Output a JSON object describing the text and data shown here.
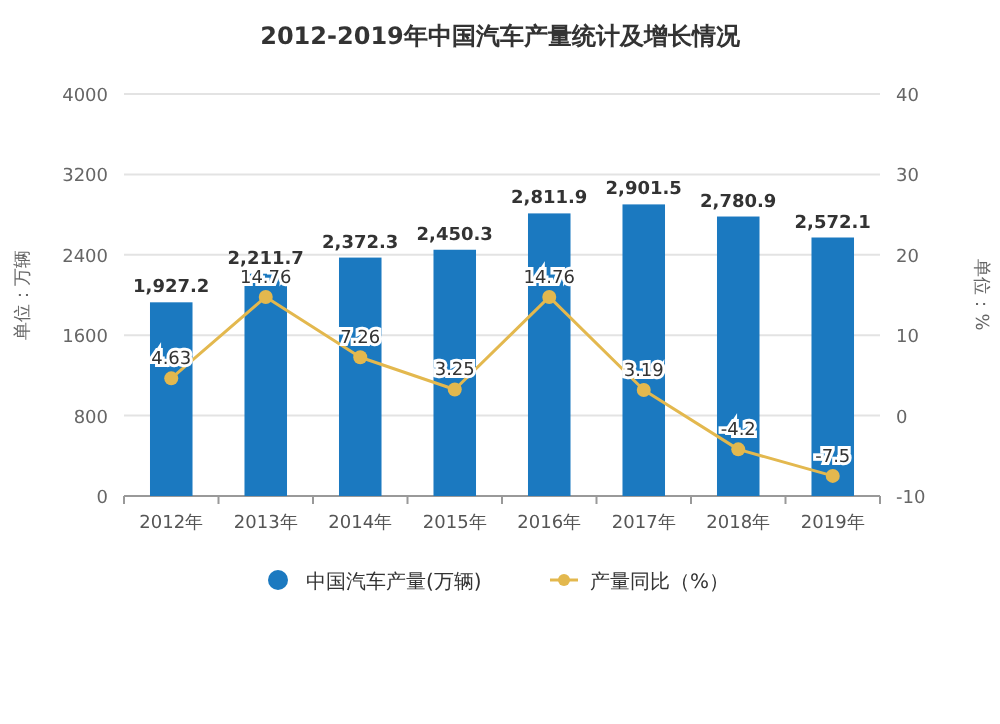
{
  "chart_data": {
    "type": "bar",
    "title": "2012-2019年中国汽车产量统计及增长情况",
    "ylabel": "单位：万辆",
    "y2label": "单位：%",
    "categories": [
      "2012年",
      "2013年",
      "2014年",
      "2015年",
      "2016年",
      "2017年",
      "2018年",
      "2019年"
    ],
    "series": [
      {
        "name": "中国汽车产量(万辆)",
        "type": "bar",
        "color": "#1b79c0",
        "values": [
          1927.2,
          2211.7,
          2372.3,
          2450.3,
          2811.9,
          2901.5,
          2780.9,
          2572.1
        ],
        "value_labels": [
          "1,927.2",
          "2,211.7",
          "2,372.3",
          "2,450.3",
          "2,811.9",
          "2,901.5",
          "2,780.9",
          "2,572.1"
        ]
      },
      {
        "name": "产量同比（%）",
        "type": "line",
        "axis": "y2",
        "color": "#e3b84e",
        "marker": "circle",
        "values": [
          4.63,
          14.76,
          7.26,
          3.25,
          14.76,
          3.19,
          -4.2,
          -7.5
        ],
        "value_labels": [
          "4.63",
          "14.76",
          "7.26",
          "3.25",
          "14.76",
          "3.19",
          "-4.2",
          "-7.5"
        ]
      }
    ],
    "ylim": [
      0,
      4000
    ],
    "yticks": [
      0,
      800,
      1600,
      2400,
      3200,
      4000
    ],
    "y2lim": [
      -10,
      40
    ],
    "y2ticks": [
      -10,
      0,
      10,
      20,
      30,
      40
    ],
    "grid": "y",
    "legend": "bottom"
  }
}
